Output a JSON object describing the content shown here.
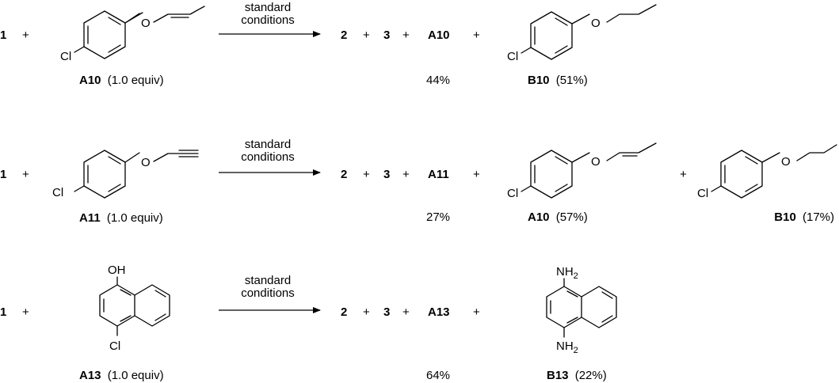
{
  "reactions": [
    {
      "reagent": "1",
      "substrate": {
        "compound": "A10",
        "amount": "(1.0 equiv)",
        "atoms": [
          "Cl",
          "O"
        ]
      },
      "arrow": {
        "line1": "standard",
        "line2": "conditions"
      },
      "products": [
        "2",
        "3",
        "A10"
      ],
      "recovered_yield": "44%",
      "byproducts": [
        {
          "compound": "B10",
          "yield": "(51%)",
          "atoms": [
            "Cl",
            "O"
          ]
        }
      ]
    },
    {
      "reagent": "1",
      "substrate": {
        "compound": "A11",
        "amount": "(1.0 equiv)",
        "atoms": [
          "Cl",
          "O"
        ]
      },
      "arrow": {
        "line1": "standard",
        "line2": "conditions"
      },
      "products": [
        "2",
        "3",
        "A11"
      ],
      "recovered_yield": "27%",
      "byproducts": [
        {
          "compound": "A10",
          "yield": "(57%)",
          "atoms": [
            "Cl",
            "O"
          ]
        },
        {
          "compound": "B10",
          "yield": "(17%)",
          "atoms": [
            "Cl",
            "O"
          ]
        }
      ]
    },
    {
      "reagent": "1",
      "substrate": {
        "compound": "A13",
        "amount": "(1.0 equiv)",
        "atoms": [
          "OH",
          "Cl"
        ]
      },
      "arrow": {
        "line1": "standard",
        "line2": "conditions"
      },
      "products": [
        "2",
        "3",
        "A13"
      ],
      "recovered_yield": "64%",
      "byproducts": [
        {
          "compound": "B13",
          "yield": "(22%)",
          "atoms": [
            "NH",
            "2",
            "NH",
            "2"
          ]
        }
      ]
    }
  ],
  "plus": "+"
}
